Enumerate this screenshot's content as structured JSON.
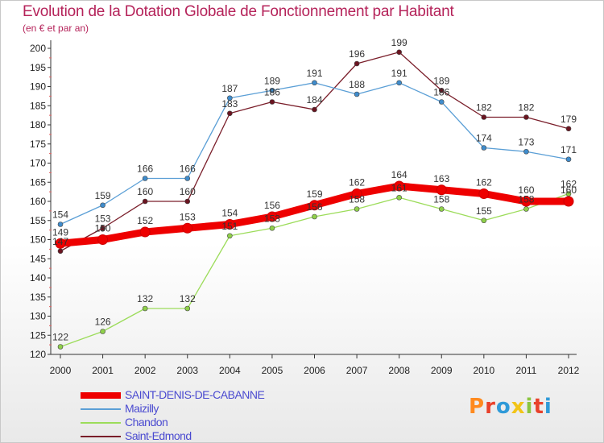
{
  "header": {
    "title": "Evolution de la Dotation Globale de Fonctionnement par Habitant",
    "subtitle": "(en € et par an)"
  },
  "logo": {
    "text": "Proxiti",
    "colors": [
      "#ff8a1f",
      "#e8412b",
      "#2f9ad8",
      "#f2c418",
      "#8bc53f",
      "#e8412b",
      "#2f9ad8"
    ]
  },
  "chart_data": {
    "type": "line",
    "x": [
      "2000",
      "2001",
      "2002",
      "2003",
      "2004",
      "2005",
      "2006",
      "2007",
      "2008",
      "2009",
      "2010",
      "2011",
      "2012"
    ],
    "ylim": [
      120,
      200
    ],
    "yticks": [
      120,
      125,
      130,
      135,
      140,
      145,
      150,
      155,
      160,
      165,
      170,
      175,
      180,
      185,
      190,
      195,
      200
    ],
    "grid": false,
    "legend_position": "bottom-left",
    "series": [
      {
        "name": "Saint-Edmond",
        "color": "#7a1e2a",
        "values": [
          147,
          153,
          160,
          160,
          183,
          186,
          184,
          196,
          199,
          189,
          182,
          182,
          179
        ]
      },
      {
        "name": "Maizilly",
        "color": "#5b9fd6",
        "values": [
          154,
          159,
          166,
          166,
          187,
          189,
          191,
          188,
          191,
          186,
          174,
          173,
          171
        ]
      },
      {
        "name": "Chandon",
        "color": "#9cdc5a",
        "values": [
          122,
          126,
          132,
          132,
          151,
          153,
          156,
          158,
          161,
          158,
          155,
          158,
          162
        ]
      },
      {
        "name": "SAINT-DENIS-DE-CABANNE",
        "color": "#ee0000",
        "values": [
          149,
          150,
          152,
          153,
          154,
          156,
          159,
          162,
          164,
          163,
          162,
          160,
          160
        ]
      }
    ],
    "legend_order": [
      "SAINT-DENIS-DE-CABANNE",
      "Maizilly",
      "Chandon",
      "Saint-Edmond"
    ]
  }
}
